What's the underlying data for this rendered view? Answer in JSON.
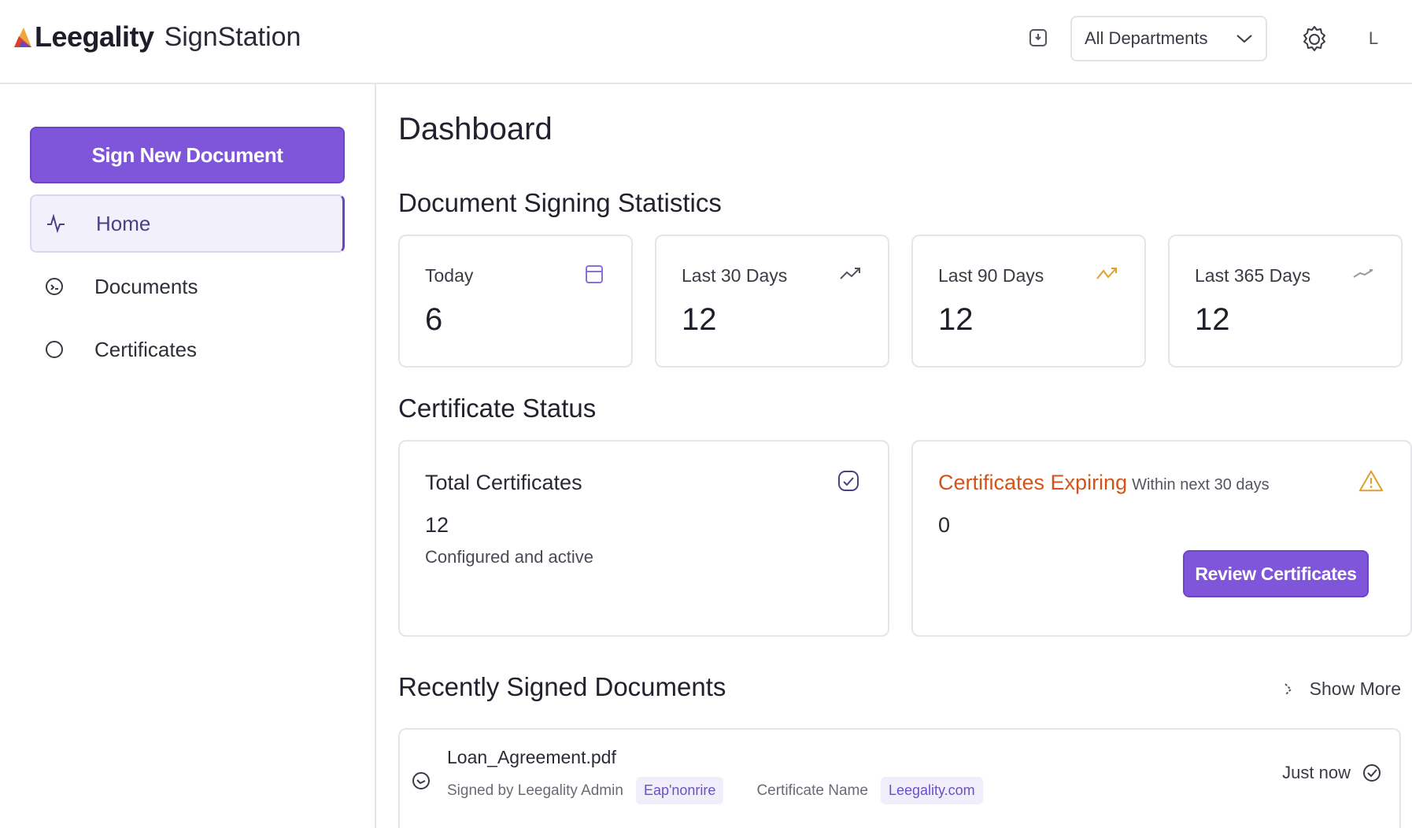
{
  "header": {
    "brand": "Leegality",
    "product": "SignStation",
    "department_selected": "All Departments",
    "avatar_initial": "L"
  },
  "sidebar": {
    "primary_button": "Sign New Document",
    "items": [
      {
        "label": "Home",
        "icon": "activity-icon",
        "active": true
      },
      {
        "label": "Documents",
        "icon": "document-circle-icon",
        "active": false
      },
      {
        "label": "Certificates",
        "icon": "circle-icon",
        "active": false
      }
    ]
  },
  "main": {
    "page_title": "Dashboard",
    "signing_stats": {
      "title": "Document Signing Statistics",
      "cards": [
        {
          "label": "Today",
          "value": "6",
          "icon": "calendar-icon",
          "icon_color": "#8b6fd6"
        },
        {
          "label": "Last 30 Days",
          "value": "12",
          "icon": "trend-up-icon",
          "icon_color": "#55555f"
        },
        {
          "label": "Last 90 Days",
          "value": "12",
          "icon": "trend-up-icon",
          "icon_color": "#e0a030"
        },
        {
          "label": "Last 365 Days",
          "value": "12",
          "icon": "trend-up-icon",
          "icon_color": "#9a9aa4"
        }
      ]
    },
    "certificate_status": {
      "title": "Certificate Status",
      "total": {
        "label": "Total Certificates",
        "value": "12",
        "subtitle": "Configured and active",
        "icon": "badge-check-icon"
      },
      "expiring": {
        "label": "Certificates Expiring",
        "sublabel": "Within next 30 days",
        "value": "0",
        "icon": "warning-icon",
        "button": "Review Certificates"
      }
    },
    "recent": {
      "title": "Recently Signed Documents",
      "show_more": "Show More",
      "documents": [
        {
          "name": "Loan_Agreement.pdf",
          "signed_by_label": "Signed by Leegality Admin",
          "signer_tag": "Eap'nonrire",
          "certificate_name_label": "Certificate Name",
          "certificate_tag": "Leegality.com",
          "time": "Just now"
        }
      ]
    }
  },
  "colors": {
    "accent": "#7f56d9",
    "warning": "#d2541b",
    "warning_icon": "#e0a030"
  }
}
